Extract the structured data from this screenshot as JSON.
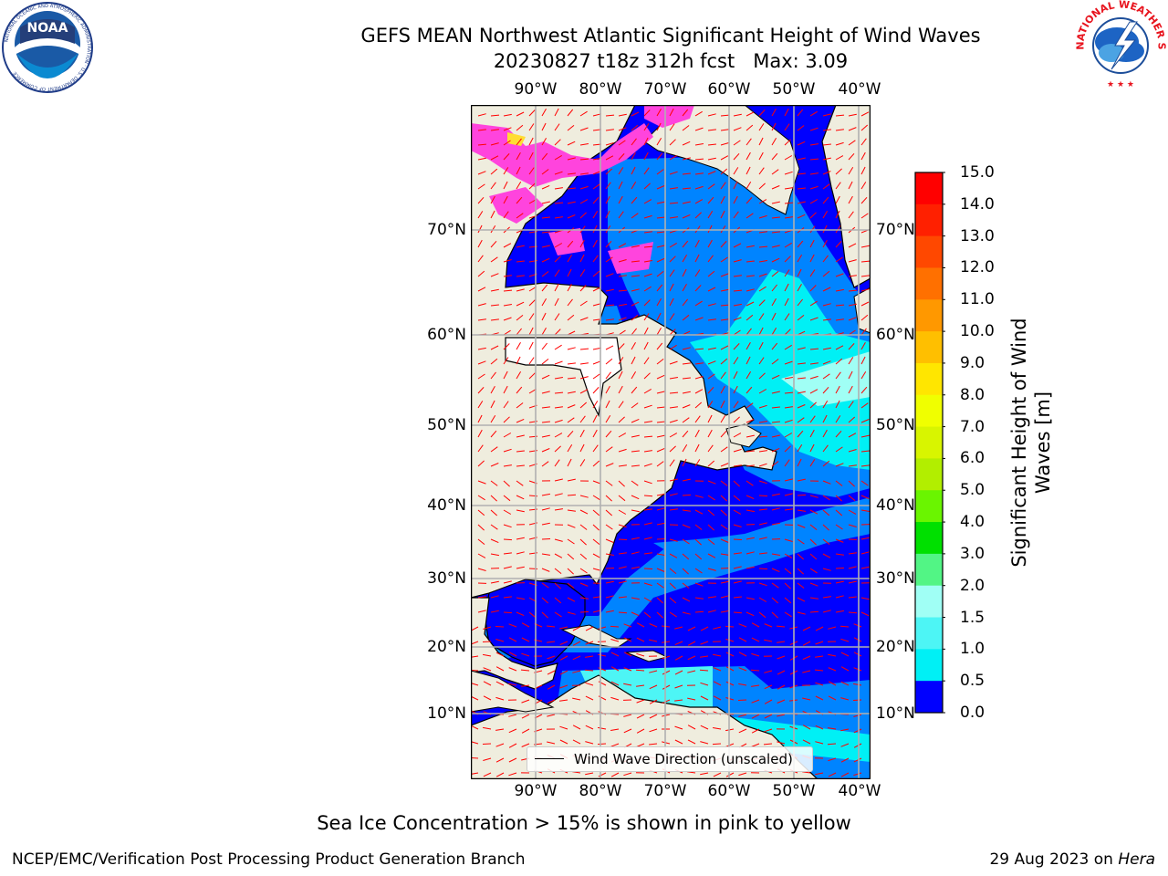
{
  "header": {
    "title_line1": "GEFS MEAN Northwest Atlantic Significant Height of Wind Waves",
    "title_line2": "20230827 t18z 312h fcst   Max: 3.09"
  },
  "logos": {
    "noaa_text": "NOAA",
    "noaa_ring_text": "NATIONAL OCEANIC AND ATMOSPHERIC ADMINISTRATION · U.S. DEPARTMENT OF COMMERCE",
    "nws_ring_text": "NATIONAL WEATHER SERVICE"
  },
  "map": {
    "longitude_labels": [
      "90°W",
      "80°W",
      "70°W",
      "60°W",
      "50°W",
      "40°W"
    ],
    "latitude_labels": [
      "70°N",
      "60°N",
      "50°N",
      "40°N",
      "30°N",
      "20°N",
      "10°N"
    ],
    "legend": {
      "wind_wave_direction": "Wind Wave Direction (unscaled)"
    },
    "arrow_color": "#ff0000",
    "land_color": "#efedde"
  },
  "colorbar": {
    "title": "Significant Height of Wind Waves [m]",
    "tick_labels": [
      "15.0",
      "14.0",
      "13.0",
      "12.0",
      "11.0",
      "10.0",
      "9.0",
      "8.0",
      "7.0",
      "6.0",
      "5.0",
      "4.0",
      "3.0",
      "2.0",
      "1.5",
      "1.0",
      "0.5",
      "0.0"
    ],
    "colors_top_to_bottom": [
      "#ff0000",
      "#ff2000",
      "#ff4800",
      "#ff7000",
      "#ff9800",
      "#ffbf00",
      "#ffe600",
      "#f0ff00",
      "#d8f500",
      "#b2ee00",
      "#6af500",
      "#00e000",
      "#52f585",
      "#a0fff5",
      "#4df5f5",
      "#00f0f5",
      "#0084ff",
      "#0000ff"
    ]
  },
  "footer": {
    "ice_note": "Sea Ice Concentration > 15% is shown in pink to yellow",
    "branch": "NCEP/EMC/Verification Post Processing Product Generation Branch",
    "date_prefix": "29 Aug 2023 on ",
    "machine": "Hera"
  }
}
